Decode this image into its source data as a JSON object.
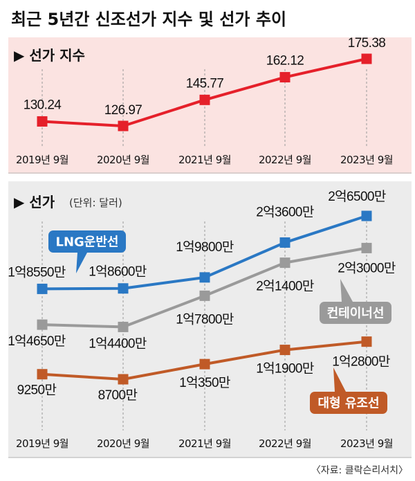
{
  "title": "최근 5년간 신조선가 지수 및 선가 추이",
  "source": "〈자료: 클락슨리서치〉",
  "colors": {
    "index_bg": "#fbe3e1",
    "price_bg": "#ececec",
    "index_line": "#e5202a",
    "lng": "#2a78c4",
    "container": "#9a9a9a",
    "tanker": "#c05a27"
  },
  "chart_data": [
    {
      "type": "line",
      "title": "▶ 선가 지수",
      "categories": [
        "2019년 9월",
        "2020년 9월",
        "2021년 9월",
        "2022년 9월",
        "2023년 9월"
      ],
      "series": [
        {
          "name": "",
          "values": [
            130.24,
            126.97,
            145.77,
            162.12,
            175.38
          ],
          "labels": [
            "130.24",
            "126.97",
            "145.77",
            "162.12",
            "175.38"
          ]
        }
      ]
    },
    {
      "type": "line",
      "title": "▶ 선가",
      "unit": "(단위: 달러)",
      "categories": [
        "2019년 9월",
        "2020년 9월",
        "2021년 9월",
        "2022년 9월",
        "2023년 9월"
      ],
      "series": [
        {
          "name": "LNG운반선",
          "values": [
            185500000,
            186000000,
            198000000,
            236000000,
            265000000
          ],
          "labels": [
            "1억8550만",
            "1억8600만",
            "1억9800만",
            "2억3600만",
            "2억6500만"
          ]
        },
        {
          "name": "컨테이너선",
          "values": [
            146500000,
            144000000,
            178000000,
            214000000,
            230000000
          ],
          "labels": [
            "1억4650만",
            "1억4400만",
            "1억7800만",
            "2억1400만",
            "2억3000만"
          ]
        },
        {
          "name": "대형 유조선",
          "values": [
            92500000,
            87000000,
            103500000,
            119000000,
            128000000
          ],
          "labels": [
            "9250만",
            "8700만",
            "1억350만",
            "1억1900만",
            "1억2800만"
          ]
        }
      ]
    }
  ]
}
